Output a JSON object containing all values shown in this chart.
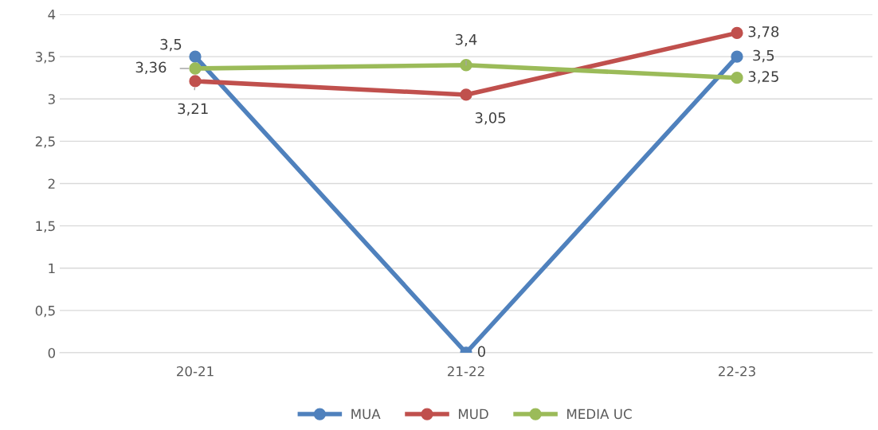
{
  "chart_data": {
    "type": "line",
    "categories": [
      "20-21",
      "21-22",
      "22-23"
    ],
    "series": [
      {
        "name": "MUA",
        "color": "#4f81bd",
        "values": [
          3.5,
          0,
          3.5
        ],
        "value_labels": [
          "3,5",
          "0",
          "3,5"
        ]
      },
      {
        "name": "MUD",
        "color": "#c0504d",
        "values": [
          3.21,
          3.05,
          3.78
        ],
        "value_labels": [
          "3,21",
          "3,05",
          "3,78"
        ]
      },
      {
        "name": "MEDIA UC",
        "color": "#9bbb59",
        "values": [
          3.36,
          3.4,
          3.25
        ],
        "value_labels": [
          "3,36",
          "3,4",
          "3,25"
        ]
      }
    ],
    "ylim": [
      0,
      4
    ],
    "yticks": [
      0,
      {
        "value": 0.5,
        "label": "0,5"
      },
      1,
      {
        "value": 1.5,
        "label": "1,5"
      },
      2,
      {
        "value": 2.5,
        "label": "2,5"
      },
      3,
      {
        "value": 3.5,
        "label": "3,5"
      },
      4
    ],
    "grid": "y",
    "legend": "bottom",
    "marker": "circle",
    "line_style": "solid"
  }
}
